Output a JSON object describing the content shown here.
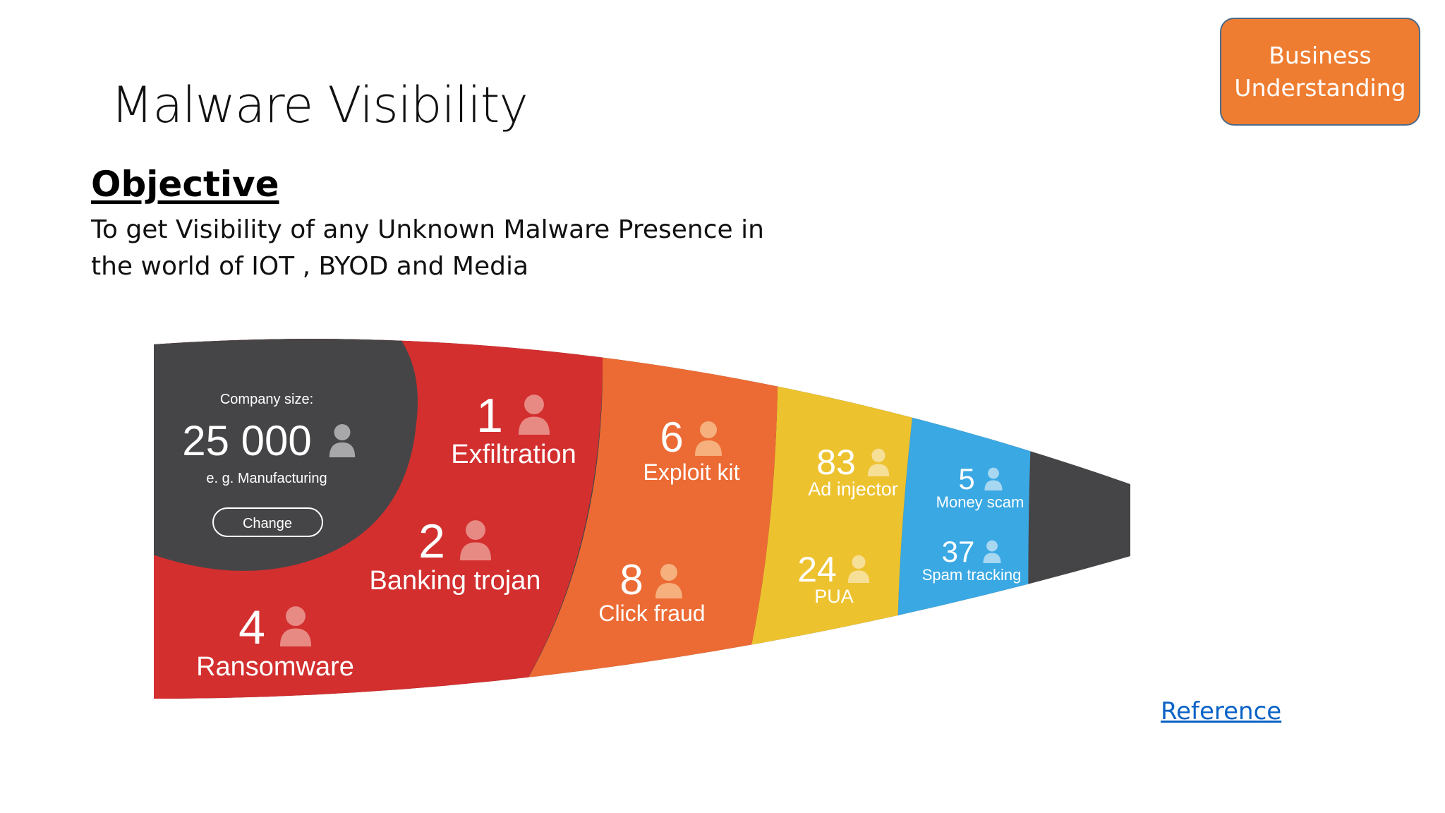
{
  "slide": {
    "title": "Malware Visibility",
    "badge_line1": "Business",
    "badge_line2": "Understanding",
    "objective_heading": "Objective",
    "objective_line1": "To get Visibility of any Unknown Malware Presence in",
    "objective_line2": "the world of IOT ,  BYOD and Media",
    "reference_link": "Reference"
  },
  "colors": {
    "dark": "#454547",
    "red": "#d32f2f",
    "orange": "#ec6b34",
    "yellow": "#edc22f",
    "blue": "#3aa8e3",
    "badge": "#ee7d31"
  },
  "funnel": {
    "company_label": "Company size:",
    "company_size": "25 000",
    "company_example": "e. g. Manufacturing",
    "change_button": "Change",
    "segments": [
      {
        "name": "Exfiltration",
        "count": "1"
      },
      {
        "name": "Banking trojan",
        "count": "2"
      },
      {
        "name": "Ransomware",
        "count": "4"
      },
      {
        "name": "Exploit kit",
        "count": "6"
      },
      {
        "name": "Click fraud",
        "count": "8"
      },
      {
        "name": "Ad injector",
        "count": "83"
      },
      {
        "name": "PUA",
        "count": "24"
      },
      {
        "name": "Money scam",
        "count": "5"
      },
      {
        "name": "Spam tracking",
        "count": "37"
      }
    ]
  }
}
